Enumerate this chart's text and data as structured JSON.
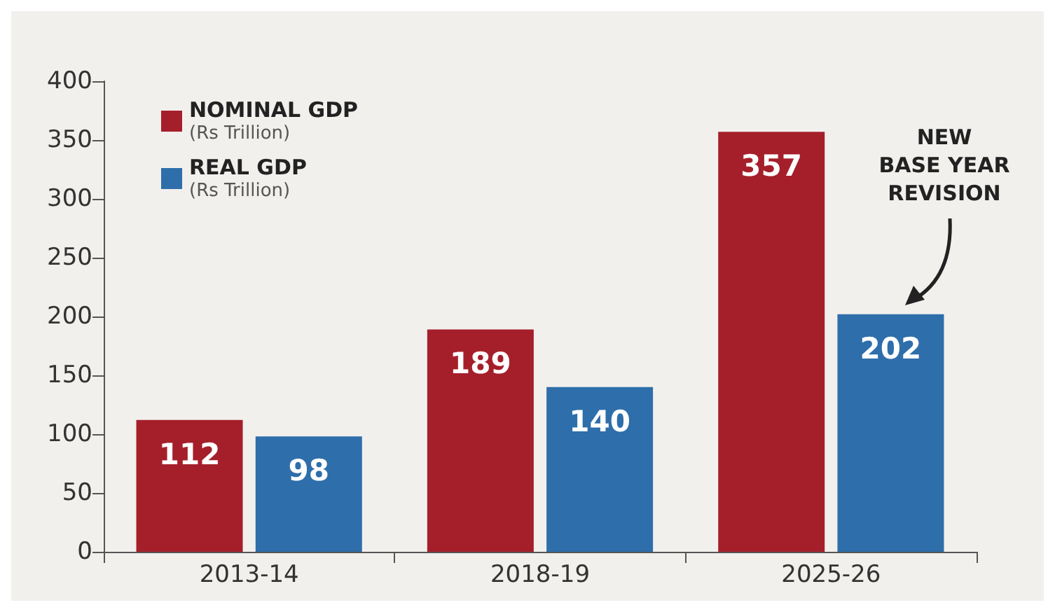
{
  "chart_data": {
    "type": "bar",
    "categories": [
      "2013-14",
      "2018-19",
      "2025-26"
    ],
    "series": [
      {
        "name": "NOMINAL GDP\n(Rs Trillion)",
        "color": "#a51f2b",
        "values": [
          112,
          189,
          357
        ]
      },
      {
        "name": "REAL GDP\n(Rs Trillion)",
        "color": "#2e6eaa",
        "values": [
          98,
          140,
          202
        ]
      }
    ],
    "ylim": [
      0,
      400
    ],
    "yticks": [
      0,
      50,
      100,
      150,
      200,
      250,
      300,
      350,
      400
    ],
    "grid": false,
    "legend": "top left",
    "data_labels": true,
    "annotations": [
      "NEW\nBASE YEAR\nREVISION"
    ]
  }
}
